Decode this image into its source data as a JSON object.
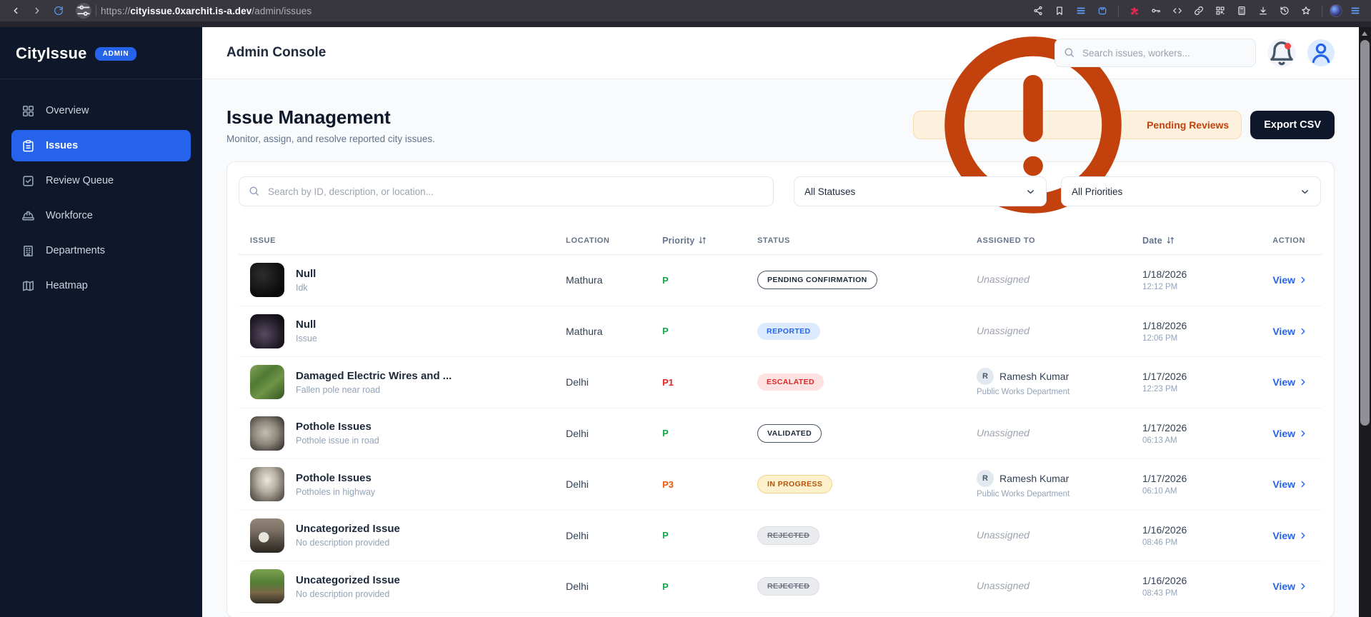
{
  "browser": {
    "url_protocol": "https://",
    "url_domain": "cityissue.0xarchit.is-a.dev",
    "url_path": "/admin/issues",
    "left_icons": [
      {
        "name": "back-icon",
        "glyph": "back",
        "tone": ""
      },
      {
        "name": "forward-icon",
        "glyph": "forward",
        "tone": "dim"
      },
      {
        "name": "reload-icon",
        "glyph": "reload",
        "tone": "blue"
      }
    ],
    "right_icons": [
      {
        "name": "share-icon",
        "glyph": "share",
        "tone": ""
      },
      {
        "name": "bookmark-icon",
        "glyph": "bookmark",
        "tone": ""
      },
      {
        "name": "reading-list-icon",
        "glyph": "bars",
        "tone": "blue"
      },
      {
        "name": "container-icon",
        "glyph": "container",
        "tone": "blue"
      },
      {
        "name": "toolbar-divider",
        "glyph": "divider",
        "tone": ""
      },
      {
        "name": "extension-red-icon",
        "glyph": "puzzle",
        "tone": "red"
      },
      {
        "name": "password-key-icon",
        "glyph": "key",
        "tone": ""
      },
      {
        "name": "code-icon",
        "glyph": "code",
        "tone": ""
      },
      {
        "name": "link-icon",
        "glyph": "link",
        "tone": ""
      },
      {
        "name": "qr-grid-icon",
        "glyph": "qr",
        "tone": ""
      },
      {
        "name": "calculator-icon",
        "glyph": "calculator",
        "tone": ""
      },
      {
        "name": "download-icon",
        "glyph": "download",
        "tone": ""
      },
      {
        "name": "history-icon",
        "glyph": "history",
        "tone": ""
      },
      {
        "name": "star-icon",
        "glyph": "star",
        "tone": ""
      },
      {
        "name": "toolbar-divider",
        "glyph": "divider",
        "tone": ""
      },
      {
        "name": "profile-avatar",
        "glyph": "avatar",
        "tone": ""
      },
      {
        "name": "menu-icon",
        "glyph": "bars",
        "tone": "blue"
      }
    ]
  },
  "sidebar": {
    "logo": "CityIssue",
    "badge": "ADMIN",
    "items": [
      {
        "label": "Overview",
        "icon": "grid-icon",
        "active": false
      },
      {
        "label": "Issues",
        "icon": "clipboard-icon",
        "active": true
      },
      {
        "label": "Review Queue",
        "icon": "check-square-icon",
        "active": false
      },
      {
        "label": "Workforce",
        "icon": "hard-hat-icon",
        "active": false
      },
      {
        "label": "Departments",
        "icon": "building-icon",
        "active": false
      },
      {
        "label": "Heatmap",
        "icon": "map-icon",
        "active": false
      }
    ]
  },
  "header": {
    "title": "Admin Console",
    "search_placeholder": "Search issues, workers...",
    "has_notification_dot": true
  },
  "page": {
    "title": "Issue Management",
    "subtitle": "Monitor, assign, and resolve reported city issues.",
    "pending_reviews_label": "Pending Reviews",
    "export_csv_label": "Export CSV"
  },
  "filters": {
    "search_placeholder": "Search by ID, description, or location...",
    "status_filter_value": "All Statuses",
    "priority_filter_value": "All Priorities"
  },
  "table": {
    "columns": [
      {
        "label": "ISSUE",
        "sortable": false,
        "mixed": false
      },
      {
        "label": "LOCATION",
        "sortable": false,
        "mixed": false
      },
      {
        "label": "Priority",
        "sortable": true,
        "mixed": true
      },
      {
        "label": "STATUS",
        "sortable": false,
        "mixed": false
      },
      {
        "label": "ASSIGNED TO",
        "sortable": false,
        "mixed": false
      },
      {
        "label": "Date",
        "sortable": true,
        "mixed": true
      },
      {
        "label": "ACTION",
        "sortable": false,
        "mixed": false,
        "right": true
      }
    ],
    "view_label": "View",
    "rows": [
      {
        "title": "Null",
        "description": "Idk",
        "location": "Mathura",
        "priority": "P",
        "priority_tone": "green",
        "status": "PENDING CONFIRMATION",
        "status_style": "outline",
        "assigned": "Unassigned",
        "assigned_initial": "",
        "department": "",
        "date": "1/18/2026",
        "time": "12:12 PM",
        "photo": "night-dark"
      },
      {
        "title": "Null",
        "description": "Issue",
        "location": "Mathura",
        "priority": "P",
        "priority_tone": "green",
        "status": "REPORTED",
        "status_style": "blue",
        "assigned": "Unassigned",
        "assigned_initial": "",
        "department": "",
        "date": "1/18/2026",
        "time": "12:06 PM",
        "photo": "night-purple"
      },
      {
        "title": "Damaged Electric Wires and ...",
        "description": "Fallen pole near road",
        "location": "Delhi",
        "priority": "P1",
        "priority_tone": "red",
        "status": "ESCALATED",
        "status_style": "red",
        "assigned": "Ramesh Kumar",
        "assigned_initial": "R",
        "department": "Public Works Department",
        "date": "1/17/2026",
        "time": "12:23 PM",
        "photo": "vegetation"
      },
      {
        "title": "Pothole Issues",
        "description": "Pothole issue in road",
        "location": "Delhi",
        "priority": "P",
        "priority_tone": "green",
        "status": "VALIDATED",
        "status_style": "outline",
        "assigned": "Unassigned",
        "assigned_initial": "",
        "department": "",
        "date": "1/17/2026",
        "time": "06:13 AM",
        "photo": "pothole-road"
      },
      {
        "title": "Pothole Issues",
        "description": "Potholes in highway",
        "location": "Delhi",
        "priority": "P3",
        "priority_tone": "orange",
        "status": "IN PROGRESS",
        "status_style": "amber",
        "assigned": "Ramesh Kumar",
        "assigned_initial": "R",
        "department": "Public Works Department",
        "date": "1/17/2026",
        "time": "06:10 AM",
        "photo": "pothole-highway"
      },
      {
        "title": "Uncategorized Issue",
        "description": "No description provided",
        "location": "Delhi",
        "priority": "P",
        "priority_tone": "green",
        "status": "REJECTED",
        "status_style": "strike",
        "assigned": "Unassigned",
        "assigned_initial": "",
        "department": "",
        "date": "1/16/2026",
        "time": "08:46 PM",
        "photo": "street-vehicle"
      },
      {
        "title": "Uncategorized Issue",
        "description": "No description provided",
        "location": "Delhi",
        "priority": "P",
        "priority_tone": "green",
        "status": "REJECTED",
        "status_style": "strike",
        "assigned": "Unassigned",
        "assigned_initial": "",
        "department": "",
        "date": "1/16/2026",
        "time": "08:43 PM",
        "photo": "tree-street"
      }
    ]
  },
  "colors": {
    "accent_blue": "#2563eb",
    "sidebar_bg": "#0f172a",
    "priority_green": "#16a34a",
    "priority_red": "#dc2626",
    "priority_orange": "#ea580c",
    "status_reported_bg": "#dbeafe",
    "status_escalated_bg": "#fee2e2",
    "status_inprogress_bg": "#fdf0cd",
    "notification_dot": "#ef4444"
  }
}
